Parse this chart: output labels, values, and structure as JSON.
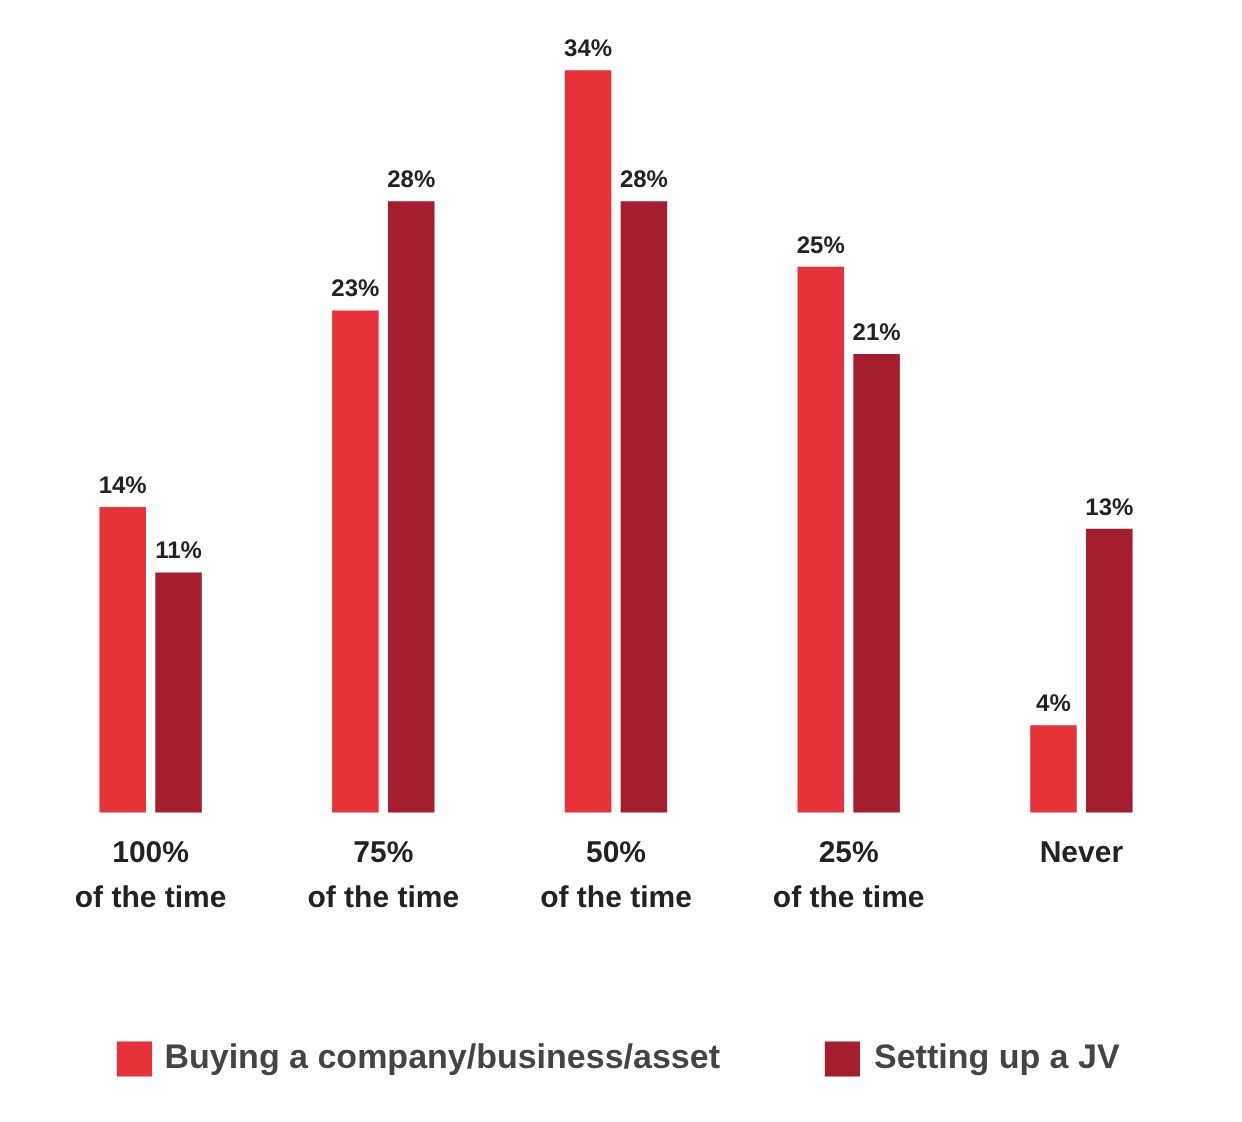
{
  "chart_data": {
    "type": "bar",
    "categories": [
      "100%\nof the time",
      "75%\nof the time",
      "50%\nof the time",
      "25%\nof the time",
      "Never"
    ],
    "series": [
      {
        "name": "Buying a company/business/asset",
        "color": "#e8323a",
        "values": [
          14,
          23,
          34,
          25,
          4
        ],
        "value_labels": [
          "14%",
          "23%",
          "34%",
          "25%",
          "4%"
        ]
      },
      {
        "name": "Setting up a JV",
        "color": "#a51e2e",
        "values": [
          11,
          28,
          28,
          21,
          13
        ],
        "value_labels": [
          "11%",
          "28%",
          "28%",
          "21%",
          "13%"
        ]
      }
    ],
    "legend": "bottom",
    "grid": false
  }
}
